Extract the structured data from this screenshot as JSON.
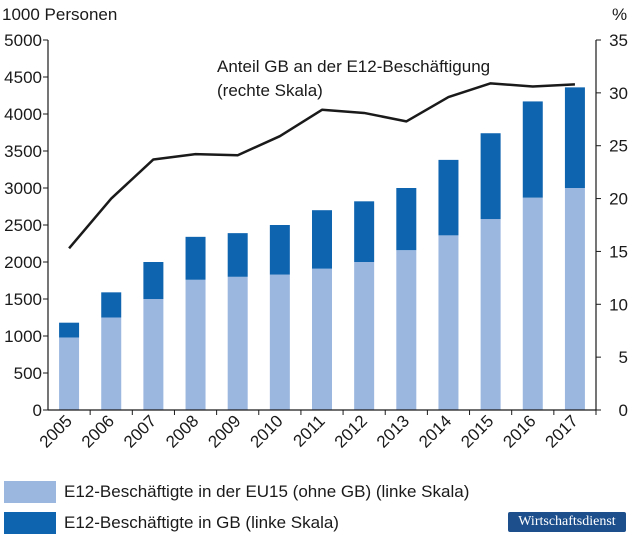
{
  "chart_data": {
    "type": "bar+line",
    "left_axis": {
      "label": "1000 Personen",
      "ylim": [
        0,
        5000
      ],
      "ticks": [
        "0",
        "500",
        "1000",
        "1500",
        "2000",
        "2500",
        "3000",
        "3500",
        "4000",
        "4500",
        "5000"
      ]
    },
    "right_axis": {
      "label": "%",
      "ylim": [
        0,
        35
      ],
      "ticks": [
        "0",
        "5",
        "10",
        "15",
        "20",
        "25",
        "30",
        "35"
      ]
    },
    "categories": [
      "2005",
      "2006",
      "2007",
      "2008",
      "2009",
      "2010",
      "2011",
      "2012",
      "2013",
      "2014",
      "2015",
      "2016",
      "2017"
    ],
    "series": [
      {
        "name": "E12-Beschäftigte in der EU15 (ohne GB) (linke Skala)",
        "kind": "bar-stack-bottom",
        "axis": "left",
        "color": "#9bb7e0",
        "values": [
          980,
          1250,
          1500,
          1760,
          1800,
          1830,
          1910,
          2000,
          2160,
          2360,
          2580,
          2870,
          3000
        ]
      },
      {
        "name": "E12-Beschäftigte in GB (linke Skala)",
        "kind": "bar-stack-top",
        "axis": "left",
        "color": "#0f64b0",
        "values": [
          200,
          340,
          500,
          580,
          590,
          670,
          790,
          820,
          840,
          1020,
          1160,
          1300,
          1360
        ]
      },
      {
        "kind": "line",
        "axis": "right",
        "color": "#1a1a1a",
        "values": [
          15.3,
          20.0,
          23.7,
          24.2,
          24.1,
          25.9,
          28.4,
          28.1,
          27.3,
          29.6,
          30.9,
          30.6,
          30.8
        ]
      }
    ],
    "annotation": {
      "line1": "Anteil GB an der E12-Beschäftigung",
      "line2": "(rechte Skala)"
    }
  },
  "legend": {
    "item1": {
      "label": "E12-Beschäftigte in der EU15 (ohne GB) (linke Skala)",
      "color": "#9bb7e0"
    },
    "item2": {
      "label": "E12-Beschäftigte in GB (linke Skala)",
      "color": "#0f64b0"
    }
  },
  "brand": "Wirtschaftsdienst"
}
